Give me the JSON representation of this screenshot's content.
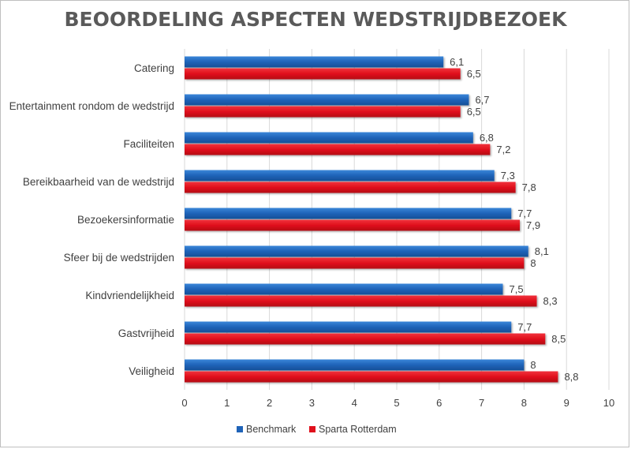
{
  "chart_data": {
    "type": "bar",
    "orientation": "horizontal",
    "title": "Beoordeling aspecten wedstrijdbezoek",
    "categories": [
      "Catering",
      "Entertainment rondom de wedstrijd",
      "Faciliteiten",
      "Bereikbaarheid van de wedstrijd",
      "Bezoekersinformatie",
      "Sfeer bij de wedstrijden",
      "Kindvriendelijkheid",
      "Gastvrijheid",
      "Veiligheid"
    ],
    "series": [
      {
        "name": "Benchmark",
        "color": "#1f63b8",
        "values": [
          6.1,
          6.7,
          6.8,
          7.3,
          7.7,
          8.1,
          7.5,
          7.7,
          8
        ],
        "labels": [
          "6,1",
          "6,7",
          "6,8",
          "7,3",
          "7,7",
          "8,1",
          "7,5",
          "7,7",
          "8"
        ]
      },
      {
        "name": "Sparta Rotterdam",
        "color": "#e0101c",
        "values": [
          6.5,
          6.5,
          7.2,
          7.8,
          7.9,
          8,
          8.3,
          8.5,
          8.8
        ],
        "labels": [
          "6,5",
          "6,5",
          "7,2",
          "7,8",
          "7,9",
          "8",
          "8,3",
          "8,5",
          "8,8"
        ]
      }
    ],
    "xlim": [
      0,
      10
    ],
    "xticks": [
      "0",
      "1",
      "2",
      "3",
      "4",
      "5",
      "6",
      "7",
      "8",
      "9",
      "10"
    ],
    "grid": true,
    "legend_position": "bottom"
  }
}
